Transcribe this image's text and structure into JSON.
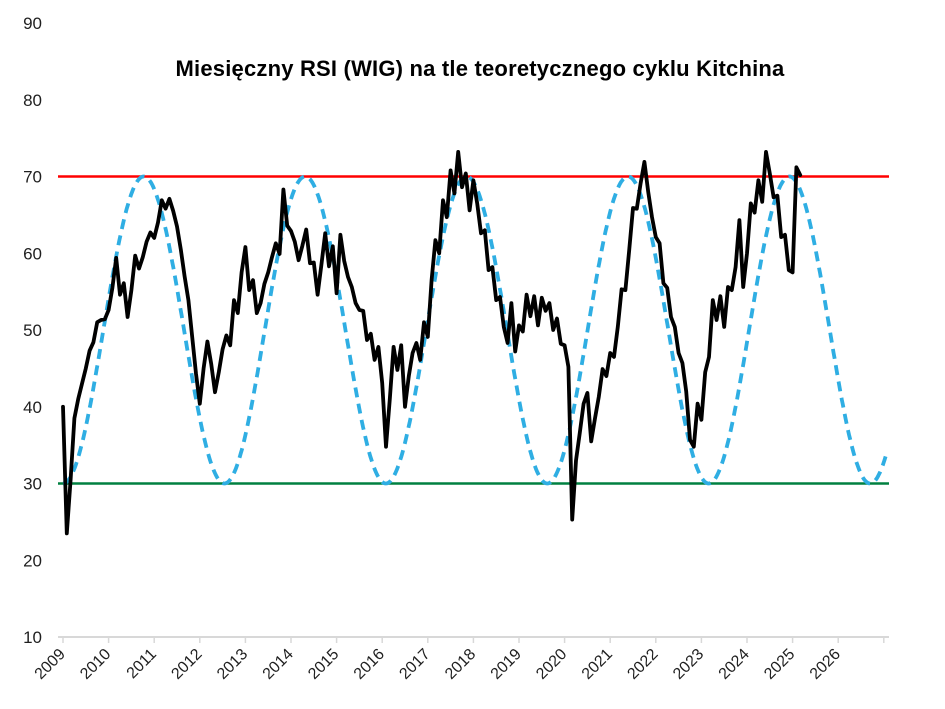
{
  "title": "Miesięczny RSI (WIG) na tle teoretycznego cyklu Kitchina",
  "colors": {
    "rsi_line": "#000000",
    "kitchin_line": "#2FAEE3",
    "overbought_line": "#FF0000",
    "oversold_line": "#008040",
    "axis": "#D8D8D8",
    "tick_text": "#1F1F1F",
    "background": "#FFFFFF"
  },
  "chart_data": {
    "type": "line",
    "title": "Miesięczny RSI (WIG) na tle teoretycznego cyklu Kitchina",
    "grid": false,
    "legend": "none",
    "y_axis": {
      "ticks": [
        90,
        80,
        70,
        60,
        50,
        40,
        30,
        20,
        10
      ],
      "range": [
        10,
        90
      ]
    },
    "x_axis": {
      "tick_labels": [
        "2009",
        "2010",
        "2011",
        "2012",
        "2013",
        "2014",
        "2015",
        "2016",
        "2017",
        "2018",
        "2019",
        "2020",
        "2021",
        "2022",
        "2023",
        "2024",
        "2025",
        "2026"
      ],
      "tick_count": 19,
      "range_years": [
        2009.0,
        2027.05
      ],
      "label_rotation_deg": -45
    },
    "reference_lines": [
      {
        "name": "overbought",
        "value": 70,
        "color": "#FF0000"
      },
      {
        "name": "oversold",
        "value": 30,
        "color": "#008040"
      }
    ],
    "series": [
      {
        "name": "Miesięczny RSI (WIG)",
        "color": "#000000",
        "line_style": "solid",
        "frequency": "monthly",
        "start_year": 2009,
        "start_month": 1,
        "values": [
          40,
          23.5,
          30.5,
          38.5,
          41,
          43,
          45,
          47.3,
          48.4,
          51,
          51.3,
          51.4,
          52.6,
          55.5,
          59.4,
          54.6,
          56.1,
          51.7,
          55.2,
          59.7,
          58,
          59.5,
          61.5,
          62.7,
          62,
          64,
          66.9,
          65.8,
          67.1,
          65.5,
          63.5,
          60.5,
          57,
          53.9,
          49.1,
          44.3,
          40.4,
          45,
          48.5,
          45.6,
          41.9,
          44.5,
          47.5,
          49.3,
          48,
          53.9,
          52.2,
          57.5,
          60.8,
          55.2,
          56.5,
          52.2,
          53.5,
          56,
          57.5,
          59.5,
          61.3,
          59.9,
          68.3,
          63.6,
          62.9,
          61.5,
          59.1,
          61,
          63.1,
          58.7,
          58.8,
          54.6,
          58.5,
          62.6,
          58.3,
          60.9,
          54.8,
          62.4,
          59,
          56.9,
          55.6,
          53.5,
          52.6,
          52.5,
          48.7,
          49.5,
          46.1,
          47.8,
          43.1,
          34.8,
          41,
          47.8,
          44.8,
          48,
          40,
          44,
          47,
          48.3,
          46.1,
          51,
          49.1,
          56.5,
          61.7,
          60,
          66.9,
          64.7,
          70.8,
          67.8,
          73.2,
          68.6,
          70.4,
          65.6,
          69.5,
          66.5,
          62.6,
          63,
          57.8,
          58.2,
          53.9,
          54.3,
          50.4,
          48.3,
          53.5,
          47.2,
          50.6,
          49.8,
          54.6,
          51.8,
          54.4,
          50.6,
          54.2,
          52.5,
          53.5,
          50,
          51.5,
          48.2,
          48,
          45.2,
          25.3,
          33,
          36.6,
          40.4,
          41.8,
          35.5,
          38.5,
          41.3,
          44.9,
          44,
          47,
          46.5,
          50.4,
          55.3,
          55.2,
          60.4,
          65.9,
          65.8,
          69.1,
          71.9,
          68,
          64.7,
          62.1,
          61.3,
          56.1,
          55.5,
          51.7,
          50.4,
          47,
          45.7,
          42,
          35.7,
          34.8,
          40.4,
          38.3,
          44.5,
          46.5,
          53.9,
          51.3,
          54.4,
          50.4,
          55.6,
          55.2,
          58.2,
          64.3,
          55.6,
          60,
          66.5,
          65.3,
          69.5,
          66.7,
          73.2,
          70.4,
          67.3,
          67.5,
          62.1,
          62.4,
          57.8,
          57.5,
          71.2,
          70.2
        ]
      },
      {
        "name": "Teoretyczny cykl Kitchina",
        "color": "#2FAEE3",
        "line_style": "dashed",
        "model": {
          "shape": "cosine_trough_start",
          "mean": 50,
          "amplitude": 20,
          "period_years": 3.54,
          "trough_year": 2009.0,
          "start_year": 2009.0,
          "end_year": 2027.05
        }
      }
    ]
  }
}
